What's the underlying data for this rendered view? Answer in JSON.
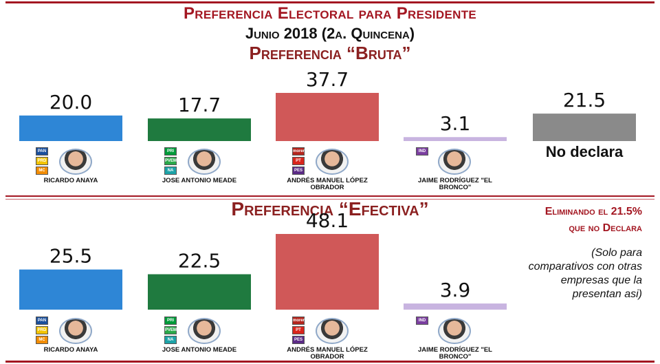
{
  "header": {
    "title": "Preferencia Electoral para Presidente",
    "subtitle": "Junio 2018 (2a. Quincena)",
    "section1_title": "Preferencia “Bruta”",
    "section2_title": "Preferencia “Efectiva”",
    "note_red_line1": "Eliminando el 21.5%",
    "note_red_line2": "que no Declara",
    "note_italic_1": "(Solo para",
    "note_italic_2": "comparativos con otras",
    "note_italic_3": "empresas que la",
    "note_italic_4": "presentan asi)"
  },
  "candidates": [
    {
      "name": "RICARDO ANAYA",
      "logos": [
        "PAN",
        "PRD",
        "MC"
      ],
      "logo_colors": [
        "#1a4f9c",
        "#f2c300",
        "#f28c00"
      ]
    },
    {
      "name": "JOSE ANTONIO MEADE",
      "logos": [
        "PRI",
        "PVEM",
        "NA"
      ],
      "logo_colors": [
        "#009b3a",
        "#2aa84a",
        "#1da3a8"
      ]
    },
    {
      "name": "ANDRÉS MANUEL LÓPEZ OBRADOR",
      "logos": [
        "morena",
        "PT",
        "PES"
      ],
      "logo_colors": [
        "#b5261e",
        "#d9251c",
        "#5b2a86"
      ]
    },
    {
      "name": "JAIME RODRÍGUEZ \"EL BRONCO\"",
      "logos": [
        "IND"
      ],
      "logo_colors": [
        "#7b3fa0"
      ]
    }
  ],
  "no_declara_label": "No declara",
  "chart_data": [
    {
      "type": "bar",
      "title": "Preferencia “Bruta”",
      "categories": [
        "RICARDO ANAYA",
        "JOSE ANTONIO MEADE",
        "ANDRÉS MANUEL LÓPEZ OBRADOR",
        "JAIME RODRÍGUEZ \"EL BRONCO\"",
        "No declara"
      ],
      "values": [
        20.0,
        17.7,
        37.7,
        3.1,
        21.5
      ],
      "value_labels": [
        "20.0",
        "17.7",
        "37.7",
        "3.1",
        "21.5"
      ],
      "colors": [
        "#2e86d6",
        "#1f7a3f",
        "#d05858",
        "#c8b4e0",
        "#8a8a8a"
      ],
      "ylim": [
        0,
        37.7
      ]
    },
    {
      "type": "bar",
      "title": "Preferencia “Efectiva”",
      "categories": [
        "RICARDO ANAYA",
        "JOSE ANTONIO MEADE",
        "ANDRÉS MANUEL LÓPEZ OBRADOR",
        "JAIME RODRÍGUEZ \"EL BRONCO\""
      ],
      "values": [
        25.5,
        22.5,
        48.1,
        3.9
      ],
      "value_labels": [
        "25.5",
        "22.5",
        "48.1",
        "3.9"
      ],
      "colors": [
        "#2e86d6",
        "#1f7a3f",
        "#d05858",
        "#c8b4e0"
      ],
      "ylim": [
        0,
        48.1
      ]
    }
  ]
}
